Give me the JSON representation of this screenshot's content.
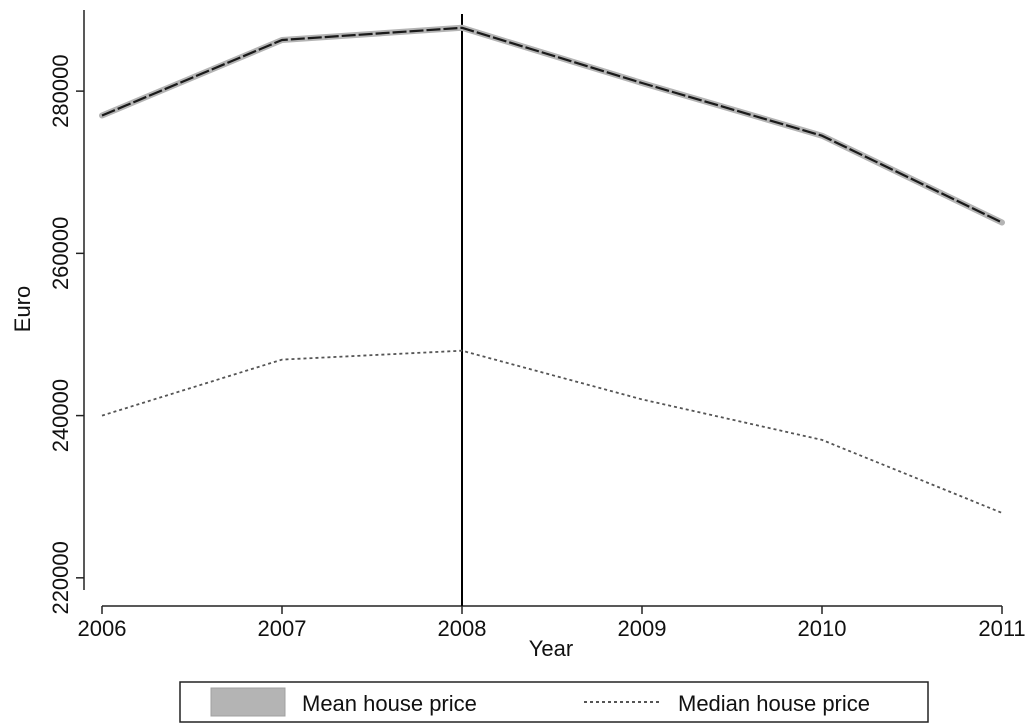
{
  "chart_data": {
    "type": "line",
    "title": "",
    "xlabel": "Year",
    "ylabel": "Euro",
    "x": [
      2006,
      2007,
      2008,
      2009,
      2010,
      2011
    ],
    "x_tick_labels": [
      "2006",
      "2007",
      "2008",
      "2009",
      "2010",
      "2011"
    ],
    "y_ticks": [
      220000,
      240000,
      260000,
      280000
    ],
    "y_tick_labels": [
      "220000",
      "240000",
      "260000",
      "280000"
    ],
    "xlim": [
      2006,
      2011
    ],
    "ylim": [
      218500,
      290000
    ],
    "grid": false,
    "legend_position": "bottom-center",
    "reference_lines": [
      {
        "axis": "x",
        "value": 2008
      }
    ],
    "series": [
      {
        "name": "Mean house price",
        "values": [
          277000,
          286300,
          287800,
          281000,
          274500,
          263800
        ],
        "style": "solid-black-with-gray-band",
        "color": "#1a1a1a",
        "band_color": "#b4b4b4"
      },
      {
        "name": "Median house price",
        "values": [
          240000,
          246900,
          248000,
          242000,
          237000,
          228000
        ],
        "style": "dotted",
        "color": "#555555"
      }
    ]
  }
}
